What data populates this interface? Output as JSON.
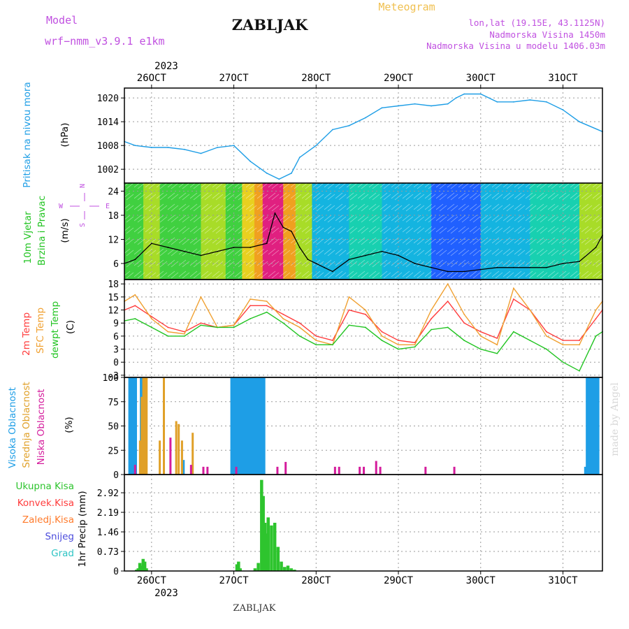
{
  "header": {
    "model_label": "Model",
    "model_name": "wrf−nmm_v3.9.1  e1km",
    "station": "ZABLJAK",
    "product": "Meteogram",
    "coords": "lon,lat (19.15E, 43.1125N)",
    "elevation": "Nadmorska Visina 1450m",
    "model_elevation": "Nadmorska Visina u modelu 1406.03m",
    "footer_station": "ZABLJAK",
    "watermark": "made by Angel"
  },
  "time_axis": {
    "year": "2023",
    "labels": [
      "26OCT",
      "27OCT",
      "28OCT",
      "29OCT",
      "30OCT",
      "31OCT"
    ],
    "positions_days": [
      1,
      2,
      3,
      4,
      5,
      6
    ],
    "range_days": [
      0.67,
      6.48
    ]
  },
  "panels": {
    "pressure": {
      "label": "Pritisak na nivou mora",
      "unit": "(hPa)",
      "color": "#1e9ee6"
    },
    "wind": {
      "label_a": "10m Vjetar",
      "label_b": "Brzina i Pravac",
      "unit": "(m/s)",
      "compass_w": "W",
      "compass_e": "E",
      "compass_n": "N",
      "compass_s": "S"
    },
    "temp": {
      "label_a": "2m Temp",
      "label_b": "SFC Temp",
      "label_c": "dewpt Temp",
      "unit": "(C)"
    },
    "cloud": {
      "label_a": "Visoka Oblacnost",
      "label_b": "Srednja Oblacnost",
      "label_c": "Niska Oblacnost",
      "unit": "(%)"
    },
    "precip": {
      "unit_label": "1hr Precip (mm)",
      "legend": [
        "Ukupna Kisa",
        "Konvek.Kisa",
        "Zaledj.Kisa",
        "Snijeg",
        "Grad"
      ],
      "legend_colors": [
        "#2ec42e",
        "#ff3c3c",
        "#ff7a2a",
        "#4b4bdc",
        "#2ec4c4"
      ]
    }
  },
  "chart_data": [
    {
      "type": "line",
      "title": "Pritisak na nivou mora",
      "ylabel": "(hPa)",
      "yticks": [
        1002,
        1008,
        1014,
        1020
      ],
      "ylim": [
        998.5,
        1022.5
      ],
      "series": [
        {
          "name": "Pritisak na nivou mora",
          "color": "#1e9ee6",
          "x": [
            0.67,
            0.8,
            1.0,
            1.2,
            1.4,
            1.6,
            1.8,
            2.0,
            2.2,
            2.4,
            2.55,
            2.7,
            2.8,
            3.0,
            3.2,
            3.4,
            3.6,
            3.8,
            4.0,
            4.2,
            4.4,
            4.6,
            4.7,
            4.8,
            5.0,
            5.2,
            5.4,
            5.6,
            5.8,
            6.0,
            6.2,
            6.48
          ],
          "y": [
            1009,
            1008,
            1007.5,
            1007.5,
            1007,
            1006,
            1007.5,
            1008,
            1004,
            1001,
            999.5,
            1001,
            1005,
            1008,
            1012,
            1013,
            1015,
            1017.5,
            1018,
            1018.5,
            1018,
            1018.5,
            1020,
            1021,
            1021,
            1019,
            1019,
            1019.5,
            1019,
            1017,
            1014,
            1011.5
          ]
        }
      ]
    },
    {
      "type": "line",
      "title": "10m Vjetar Brzina i Pravac",
      "ylabel": "(m/s)",
      "yticks": [
        6,
        12,
        18,
        24
      ],
      "ylim": [
        2,
        26
      ],
      "series": [
        {
          "name": "Brzina",
          "color": "#000000",
          "x": [
            0.67,
            0.8,
            1.0,
            1.2,
            1.4,
            1.6,
            1.8,
            2.0,
            2.2,
            2.4,
            2.5,
            2.6,
            2.7,
            2.8,
            2.9,
            3.0,
            3.1,
            3.2,
            3.4,
            3.6,
            3.8,
            4.0,
            4.2,
            4.4,
            4.6,
            4.8,
            5.0,
            5.2,
            5.4,
            5.6,
            5.8,
            6.0,
            6.2,
            6.4,
            6.48
          ],
          "y": [
            6,
            7,
            11,
            10,
            9,
            8,
            9,
            10,
            10,
            11,
            18.5,
            15,
            14,
            10,
            7,
            6,
            5,
            4,
            7,
            8,
            9,
            8,
            6,
            5,
            4,
            4,
            4.5,
            5,
            5,
            5,
            5,
            6,
            6.5,
            10,
            13
          ]
        }
      ]
    },
    {
      "type": "line",
      "title": "Temperature",
      "ylabel": "(C)",
      "yticks": [
        -3,
        0,
        3,
        6,
        9,
        12,
        15,
        18
      ],
      "ylim": [
        -3.5,
        19
      ],
      "series": [
        {
          "name": "2m Temp",
          "color": "#ff3c3c",
          "x": [
            0.67,
            0.8,
            1.0,
            1.2,
            1.4,
            1.6,
            1.8,
            2.0,
            2.2,
            2.4,
            2.6,
            2.8,
            3.0,
            3.2,
            3.4,
            3.6,
            3.8,
            4.0,
            4.2,
            4.4,
            4.6,
            4.8,
            5.0,
            5.2,
            5.4,
            5.6,
            5.8,
            6.0,
            6.2,
            6.4,
            6.48
          ],
          "y": [
            12,
            13,
            10.5,
            8,
            7,
            9,
            8,
            8.5,
            13,
            13,
            11,
            9,
            6,
            5,
            12,
            11,
            7,
            5,
            4.5,
            10,
            14,
            9,
            7,
            5.5,
            14.5,
            12,
            7,
            5,
            5,
            10,
            12
          ]
        },
        {
          "name": "SFC Temp",
          "color": "#f0a030",
          "x": [
            0.67,
            0.8,
            1.0,
            1.2,
            1.4,
            1.6,
            1.8,
            2.0,
            2.2,
            2.4,
            2.6,
            2.8,
            3.0,
            3.2,
            3.4,
            3.6,
            3.8,
            4.0,
            4.2,
            4.4,
            4.6,
            4.8,
            5.0,
            5.2,
            5.4,
            5.6,
            5.8,
            6.0,
            6.2,
            6.4,
            6.48
          ],
          "y": [
            14,
            15.5,
            10,
            7,
            6.5,
            15,
            8,
            8.5,
            14.5,
            14,
            10,
            8,
            5,
            4,
            15,
            12,
            6,
            4,
            4,
            12,
            18,
            11,
            6,
            4,
            17,
            12,
            6,
            4,
            4,
            12,
            14
          ]
        },
        {
          "name": "dewpt Temp",
          "color": "#22c422",
          "x": [
            0.67,
            0.8,
            1.0,
            1.2,
            1.4,
            1.6,
            1.8,
            2.0,
            2.2,
            2.4,
            2.6,
            2.8,
            3.0,
            3.2,
            3.4,
            3.6,
            3.8,
            4.0,
            4.2,
            4.4,
            4.6,
            4.8,
            5.0,
            5.2,
            5.4,
            5.6,
            5.8,
            6.0,
            6.2,
            6.4,
            6.48
          ],
          "y": [
            9.5,
            10,
            8,
            6,
            6,
            8.5,
            8,
            8,
            10,
            11.5,
            9,
            6,
            4,
            4,
            8.5,
            8,
            5,
            3,
            3.5,
            7.5,
            8,
            5,
            3,
            2,
            7,
            5,
            3,
            0,
            -2,
            6,
            7
          ]
        }
      ]
    },
    {
      "type": "bar",
      "title": "Oblacnost",
      "ylabel": "(%)",
      "yticks": [
        0,
        25,
        50,
        75,
        100
      ],
      "ylim": [
        0,
        100
      ],
      "series": [
        {
          "name": "Visoka Oblacnost",
          "color": "#1e9ee6",
          "x": [
            0.76,
            0.78,
            0.8,
            0.82,
            0.84,
            0.9,
            0.92,
            0.94,
            0.96,
            1.4,
            1.42,
            2.0,
            2.02,
            2.04,
            2.06,
            2.08,
            2.1,
            2.12,
            2.14,
            2.16,
            2.18,
            2.2,
            2.22,
            2.24,
            2.26,
            2.28,
            2.3,
            2.32,
            2.34,
            2.36,
            2.38,
            2.4,
            6.3,
            6.32,
            6.34,
            6.36,
            6.38,
            6.4,
            6.42,
            6.44,
            6.46
          ],
          "y": [
            100,
            100,
            100,
            100,
            100,
            100,
            100,
            100,
            100,
            15,
            15,
            100,
            100,
            100,
            100,
            100,
            100,
            100,
            100,
            100,
            100,
            100,
            100,
            100,
            100,
            100,
            100,
            100,
            100,
            100,
            100,
            100,
            8,
            100,
            100,
            100,
            100,
            100,
            100,
            100,
            100
          ]
        },
        {
          "name": "Srednja Oblacnost",
          "color": "#e0a028",
          "x": [
            0.86,
            0.88,
            0.9,
            0.92,
            0.94,
            1.1,
            1.15,
            1.3,
            1.33,
            1.37,
            1.5
          ],
          "y": [
            35,
            80,
            100,
            100,
            100,
            35,
            100,
            55,
            52,
            35,
            43
          ]
        },
        {
          "name": "Niska Oblacnost",
          "color": "#d41c9c",
          "x": [
            0.77,
            1.2,
            1.45,
            1.6,
            1.65,
            2.0,
            2.5,
            2.6,
            3.2,
            3.25,
            3.5,
            3.55,
            3.7,
            3.75,
            4.3,
            4.65
          ],
          "y": [
            10,
            38,
            10,
            8,
            8,
            8,
            8,
            13,
            8,
            8,
            8,
            8,
            14,
            8,
            8,
            8
          ]
        }
      ]
    },
    {
      "type": "bar",
      "title": "1hr Precip",
      "ylabel": "1hr Precip (mm)",
      "yticks": [
        0,
        0.73,
        1.46,
        2.19,
        2.92
      ],
      "ylim": [
        0,
        3.6
      ],
      "series": [
        {
          "name": "Ukupna Kisa",
          "color": "#2ec42e",
          "x": [
            0.86,
            0.88,
            0.9,
            0.92,
            0.94,
            0.96,
            0.98,
            2.08,
            2.1,
            2.12,
            2.3,
            2.34,
            2.38,
            2.4,
            2.42,
            2.44,
            2.46,
            2.5,
            2.54,
            2.58,
            2.62,
            2.66,
            2.7,
            2.74,
            2.78
          ],
          "y": [
            0.05,
            0.1,
            0.3,
            0.2,
            0.45,
            0.35,
            0.1,
            0.25,
            0.35,
            0.1,
            0.1,
            0.3,
            3.4,
            2.8,
            1.8,
            1.4,
            2.0,
            1.7,
            1.8,
            0.9,
            0.35,
            0.15,
            0.2,
            0.1,
            0.05
          ]
        }
      ]
    }
  ]
}
